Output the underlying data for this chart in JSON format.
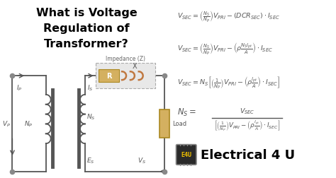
{
  "title_line1": "What is Voltage",
  "title_line2": "Regulation of",
  "title_line3": "Transformer?",
  "title_color": "#000000",
  "title_fontsize": 11.5,
  "bg_color": "#ffffff",
  "eq_color": "#555555",
  "eq_fontsize": 6.8,
  "impedance_label": "Impedance (Z)",
  "diagram_color": "#555555",
  "resistor_color": "#d4b060",
  "inductor_color": "#c07840",
  "load_color": "#d4b060",
  "dashed_box_color": "#aaaaaa",
  "dashed_box_fill": "#e8e8e8",
  "brand_text": "Electrical 4 U",
  "brand_color": "#000000",
  "chip_bg": "#2a2a2a",
  "chip_text_color": "#f0c000",
  "dot_color": "#888888"
}
